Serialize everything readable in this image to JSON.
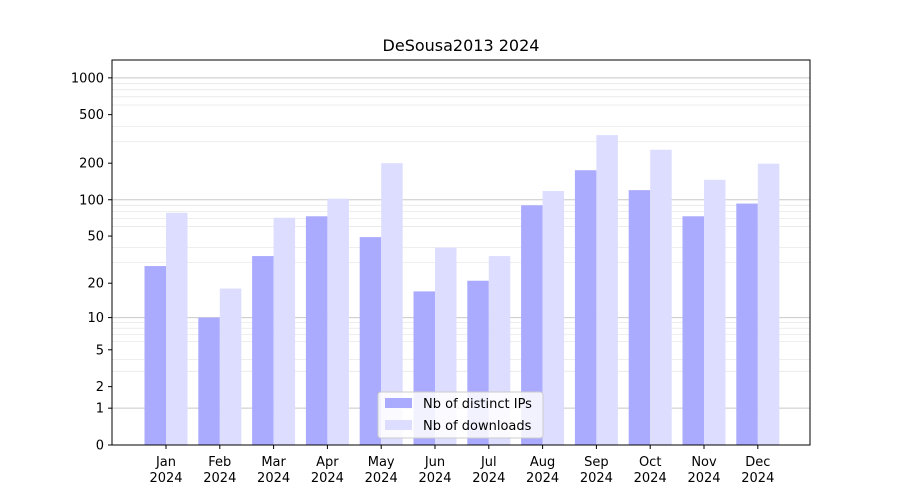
{
  "chart_data": {
    "type": "bar",
    "title": "DeSousa2013 2024",
    "xlabel": "",
    "ylabel": "",
    "yscale": "symlog",
    "ylim": [
      0,
      1400
    ],
    "categories": [
      [
        "Jan",
        "2024"
      ],
      [
        "Feb",
        "2024"
      ],
      [
        "Mar",
        "2024"
      ],
      [
        "Apr",
        "2024"
      ],
      [
        "May",
        "2024"
      ],
      [
        "Jun",
        "2024"
      ],
      [
        "Jul",
        "2024"
      ],
      [
        "Aug",
        "2024"
      ],
      [
        "Sep",
        "2024"
      ],
      [
        "Oct",
        "2024"
      ],
      [
        "Nov",
        "2024"
      ],
      [
        "Dec",
        "2024"
      ]
    ],
    "yticks": [
      {
        "value": 0,
        "label": "0"
      },
      {
        "value": 1,
        "label": "1"
      },
      {
        "value": 2,
        "label": "2"
      },
      {
        "value": 5,
        "label": "5"
      },
      {
        "value": 10,
        "label": "10"
      },
      {
        "value": 20,
        "label": "20"
      },
      {
        "value": 50,
        "label": "50"
      },
      {
        "value": 100,
        "label": "100"
      },
      {
        "value": 200,
        "label": "200"
      },
      {
        "value": 500,
        "label": "500"
      },
      {
        "value": 1000,
        "label": "1000"
      }
    ],
    "grid": true,
    "legend_position": "bottom-center",
    "series": [
      {
        "name": "Nb of distinct IPs",
        "color": "#aaaaff",
        "values": [
          28,
          10,
          34,
          73,
          49,
          17,
          21,
          90,
          175,
          120,
          73,
          93
        ]
      },
      {
        "name": "Nb of downloads",
        "color": "#ddddff",
        "values": [
          78,
          18,
          71,
          102,
          200,
          40,
          34,
          118,
          340,
          258,
          146,
          198
        ]
      }
    ]
  }
}
